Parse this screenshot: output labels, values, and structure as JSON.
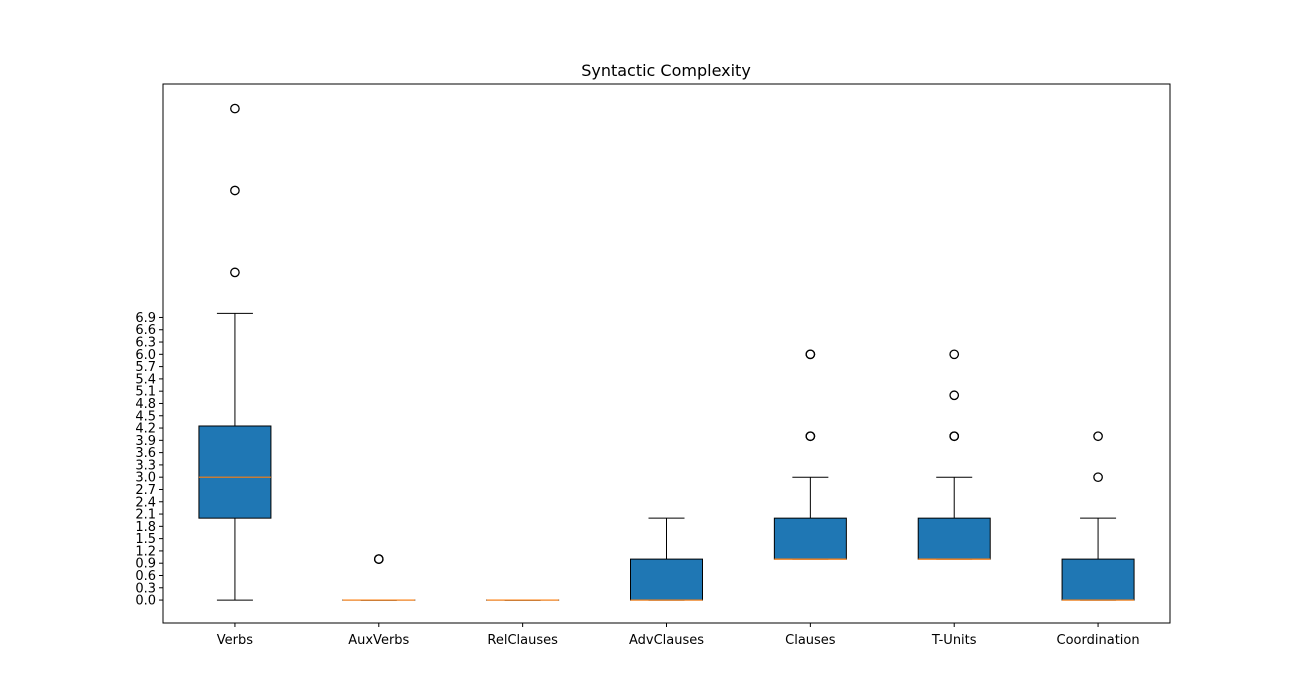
{
  "chart_data": {
    "type": "box",
    "title": "Syntactic Complexity",
    "xlabel": "",
    "ylabel": "",
    "ylim": [
      -0.56,
      12.6
    ],
    "yticks": [
      "0.0",
      "0.3",
      "0.6",
      "0.9",
      "1.2",
      "1.5",
      "1.8",
      "2.1",
      "2.4",
      "2.7",
      "3.0",
      "3.3",
      "3.6",
      "3.9",
      "4.2",
      "4.5",
      "4.8",
      "5.1",
      "5.4",
      "5.7",
      "6.0",
      "6.3",
      "6.6",
      "6.9"
    ],
    "grid": false,
    "box_color": "#1f77b4",
    "median_color": "#ff7f0e",
    "categories": [
      "Verbs",
      "AuxVerbs",
      "RelClauses",
      "AdvClauses",
      "Clauses",
      "T-Units",
      "Coordination"
    ],
    "boxes": [
      {
        "whisker_low": 0,
        "q1": 2,
        "median": 3,
        "q3": 4.25,
        "whisker_high": 7,
        "outliers": [
          8,
          10,
          12
        ]
      },
      {
        "whisker_low": 0,
        "q1": 0,
        "median": 0,
        "q3": 0,
        "whisker_high": 0,
        "outliers": [
          1,
          1
        ]
      },
      {
        "whisker_low": 0,
        "q1": 0,
        "median": 0,
        "q3": 0,
        "whisker_high": 0,
        "outliers": []
      },
      {
        "whisker_low": 0,
        "q1": 0,
        "median": 0,
        "q3": 1,
        "whisker_high": 2,
        "outliers": []
      },
      {
        "whisker_low": 1,
        "q1": 1,
        "median": 1,
        "q3": 2,
        "whisker_high": 3,
        "outliers": [
          4,
          4,
          6,
          6
        ]
      },
      {
        "whisker_low": 1,
        "q1": 1,
        "median": 1,
        "q3": 2,
        "whisker_high": 3,
        "outliers": [
          4,
          4,
          5,
          6
        ]
      },
      {
        "whisker_low": 0,
        "q1": 0,
        "median": 0,
        "q3": 1,
        "whisker_high": 2,
        "outliers": [
          3,
          4
        ]
      }
    ]
  }
}
